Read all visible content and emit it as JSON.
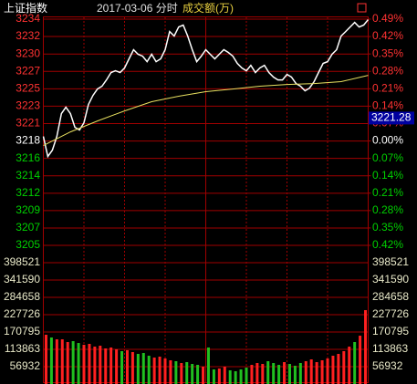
{
  "header": {
    "title": "上证指数",
    "date": "2017-03-06 分时",
    "volume_label": "成交额(万)"
  },
  "chart_data": [
    {
      "type": "line",
      "ylim": [
        3204.8,
        3234.08
      ],
      "yticks": [
        {
          "value": 3234.08,
          "label": "3234"
        },
        {
          "value": 3231.83,
          "label": "3232"
        },
        {
          "value": 3229.57,
          "label": "3230"
        },
        {
          "value": 3227.32,
          "label": "3227"
        },
        {
          "value": 3225.07,
          "label": "3225"
        },
        {
          "value": 3222.82,
          "label": "3223"
        },
        {
          "value": 3220.56,
          "label": "3221"
        },
        {
          "value": 3218.31,
          "label": "3218"
        },
        {
          "value": 3216.06,
          "label": "3216"
        },
        {
          "value": 3213.8,
          "label": "3214"
        },
        {
          "value": 3211.55,
          "label": "3212"
        },
        {
          "value": 3209.3,
          "label": "3209"
        },
        {
          "value": 3207.04,
          "label": "3207"
        },
        {
          "value": 3204.8,
          "label": "3205"
        }
      ],
      "y2lim": [
        -0.42,
        0.49
      ],
      "y2ticks": [
        {
          "value": 0.49,
          "label": "0.49%"
        },
        {
          "value": 0.42,
          "label": "0.42%"
        },
        {
          "value": 0.35,
          "label": "0.35%"
        },
        {
          "value": 0.28,
          "label": "0.28%"
        },
        {
          "value": 0.21,
          "label": "0.21%"
        },
        {
          "value": 0.14,
          "label": "0.14%"
        },
        {
          "value": 0.07,
          "label": "0.07%"
        },
        {
          "value": 0,
          "label": "0.00%"
        },
        {
          "value": -0.07,
          "label": "0.07%"
        },
        {
          "value": -0.14,
          "label": "0.14%"
        },
        {
          "value": -0.21,
          "label": "0.21%"
        },
        {
          "value": -0.28,
          "label": "0.28%"
        },
        {
          "value": -0.35,
          "label": "0.35%"
        },
        {
          "value": -0.42,
          "label": "0.42%"
        }
      ],
      "series": [
        {
          "color": "#ffffff",
          "values": [
            3218.9,
            3216.3,
            3217.13,
            3218.9,
            3221.85,
            3222.68,
            3221.85,
            3220.08,
            3219.73,
            3220.67,
            3223.03,
            3224.21,
            3225.04,
            3225.4,
            3226.22,
            3227.17,
            3227.4,
            3227.17,
            3227.76,
            3228.94,
            3230.12,
            3229.53,
            3229.29,
            3228.58,
            3229.53,
            3228.58,
            3228.94,
            3230.12,
            3232.48,
            3231.89,
            3233.07,
            3233.31,
            3231.89,
            3230.12,
            3228.58,
            3229.29,
            3230.12,
            3229.53,
            3228.94,
            3229.53,
            3230.12,
            3229.77,
            3229.29,
            3228.35,
            3227.76,
            3227.4,
            3228.11,
            3227.17,
            3227.76,
            3228.11,
            3227.17,
            3226.58,
            3226.22,
            3226.22,
            3226.93,
            3226.58,
            3225.75,
            3225.4,
            3224.81,
            3225.16,
            3225.99,
            3227.17,
            3228.35,
            3228.58,
            3229.53,
            3230.12,
            3231.89,
            3232.48,
            3233.07,
            3233.66,
            3233.07,
            3233.31,
            3234.02
          ]
        },
        {
          "color": "#e8e060",
          "values": [
            3217.72,
            3219.49,
            3220.9,
            3222.2,
            3223.39,
            3224.1,
            3224.69,
            3225.04,
            3225.4,
            3225.63,
            3225.75,
            3225.99,
            3226.81
          ]
        }
      ],
      "last_price": 3221.28,
      "up_color": "#ff3232",
      "down_color": "#00d000",
      "flat_color": "#ffffff",
      "grid_color": "#a00000"
    },
    {
      "type": "bar",
      "ylim": [
        0,
        398521
      ],
      "yticks": [
        398521,
        341590,
        284658,
        227726,
        170795,
        113863,
        56932
      ],
      "values": [
        161800,
        152800,
        146800,
        146800,
        137800,
        140800,
        134800,
        128800,
        131800,
        122900,
        125800,
        116900,
        119900,
        113900,
        107900,
        110900,
        104900,
        98900,
        101900,
        92900,
        86900,
        89900,
        83900,
        77900,
        74900,
        68900,
        71900,
        65900,
        62900,
        56900,
        119900,
        47900,
        50900,
        56900,
        44900,
        41900,
        47900,
        53900,
        62900,
        68900,
        65900,
        74900,
        68900,
        62900,
        71900,
        65900,
        59900,
        68900,
        74900,
        80900,
        71900,
        77900,
        83900,
        92900,
        98900,
        107900,
        122900,
        137800,
        158800,
        242700
      ],
      "up_color": "#ff2020",
      "down_color": "#20c020",
      "label_color": "#e8e8c8"
    }
  ]
}
